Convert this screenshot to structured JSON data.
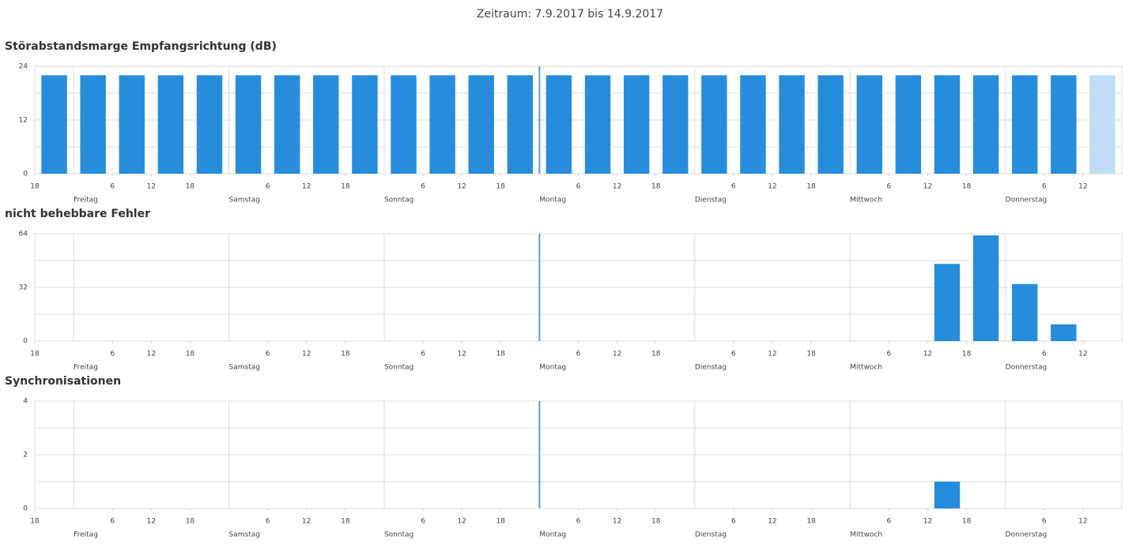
{
  "page_title": "Zeitraum: 7.9.2017 bis 14.9.2017",
  "chart_data": [
    {
      "type": "histogram",
      "title": "Störabstandsmarge Empfangsrichtung (dB)",
      "color": "#268ddd",
      "last_color": "#bfdef5",
      "bins": [
        0,
        6,
        12,
        18,
        24,
        30,
        36,
        42,
        48,
        54,
        60,
        66,
        72,
        78,
        84,
        90,
        96,
        102,
        108,
        114,
        120,
        126,
        132,
        138,
        144,
        150,
        156,
        162,
        168
      ],
      "values": [
        22,
        22,
        22,
        22,
        22,
        22,
        22,
        22,
        22,
        22,
        22,
        22,
        22,
        22,
        22,
        22,
        22,
        22,
        22,
        22,
        22,
        22,
        22,
        22,
        22,
        22,
        22,
        22
      ],
      "xlim": [
        0,
        168
      ],
      "xticks": [
        {
          "value": 0,
          "label": "18"
        },
        {
          "value": 12,
          "label": "6"
        },
        {
          "value": 18,
          "label": "12"
        },
        {
          "value": 24,
          "label": "18"
        },
        {
          "value": 36,
          "label": "6"
        },
        {
          "value": 42,
          "label": "12"
        },
        {
          "value": 48,
          "label": "18"
        },
        {
          "value": 60,
          "label": "6"
        },
        {
          "value": 66,
          "label": "12"
        },
        {
          "value": 72,
          "label": "18"
        },
        {
          "value": 84,
          "label": "6"
        },
        {
          "value": 90,
          "label": "12"
        },
        {
          "value": 96,
          "label": "18"
        },
        {
          "value": 108,
          "label": "6"
        },
        {
          "value": 114,
          "label": "12"
        },
        {
          "value": 120,
          "label": "18"
        },
        {
          "value": 132,
          "label": "6"
        },
        {
          "value": 138,
          "label": "12"
        },
        {
          "value": 144,
          "label": "18"
        },
        {
          "value": 156,
          "label": "6"
        },
        {
          "value": 162,
          "label": "12"
        }
      ],
      "day_ticks": [
        {
          "value": 6,
          "label": "Freitag"
        },
        {
          "value": 30,
          "label": "Samstag"
        },
        {
          "value": 54,
          "label": "Sonntag"
        },
        {
          "value": 78,
          "label": "Montag"
        },
        {
          "value": 102,
          "label": "Dienstag"
        },
        {
          "value": 126,
          "label": "Mittwoch"
        },
        {
          "value": 150,
          "label": "Donnerstag"
        }
      ],
      "ylim": [
        0,
        24
      ],
      "yticks": [
        0,
        12,
        24
      ],
      "ygrid": [
        0,
        6,
        12,
        18,
        24
      ],
      "marker_x": 78,
      "marker_color": "#5b9bd5"
    },
    {
      "type": "histogram",
      "title": "nicht behebbare Fehler",
      "color": "#268ddd",
      "bins": [
        0,
        6,
        12,
        18,
        24,
        30,
        36,
        42,
        48,
        54,
        60,
        66,
        72,
        78,
        84,
        90,
        96,
        102,
        108,
        114,
        120,
        126,
        132,
        138,
        144,
        150,
        156,
        162,
        168
      ],
      "values": [
        0,
        0,
        0,
        0,
        0,
        0,
        0,
        0,
        0,
        0,
        0,
        0,
        0,
        0,
        0,
        0,
        0,
        0,
        0,
        0,
        0,
        0,
        0,
        46,
        63,
        34,
        10,
        0
      ],
      "xlim": [
        0,
        168
      ],
      "xticks": [
        {
          "value": 0,
          "label": "18"
        },
        {
          "value": 12,
          "label": "6"
        },
        {
          "value": 18,
          "label": "12"
        },
        {
          "value": 24,
          "label": "18"
        },
        {
          "value": 36,
          "label": "6"
        },
        {
          "value": 42,
          "label": "12"
        },
        {
          "value": 48,
          "label": "18"
        },
        {
          "value": 60,
          "label": "6"
        },
        {
          "value": 66,
          "label": "12"
        },
        {
          "value": 72,
          "label": "18"
        },
        {
          "value": 84,
          "label": "6"
        },
        {
          "value": 90,
          "label": "12"
        },
        {
          "value": 96,
          "label": "18"
        },
        {
          "value": 108,
          "label": "6"
        },
        {
          "value": 114,
          "label": "12"
        },
        {
          "value": 120,
          "label": "18"
        },
        {
          "value": 132,
          "label": "6"
        },
        {
          "value": 138,
          "label": "12"
        },
        {
          "value": 144,
          "label": "18"
        },
        {
          "value": 156,
          "label": "6"
        },
        {
          "value": 162,
          "label": "12"
        }
      ],
      "day_ticks": [
        {
          "value": 6,
          "label": "Freitag"
        },
        {
          "value": 30,
          "label": "Samstag"
        },
        {
          "value": 54,
          "label": "Sonntag"
        },
        {
          "value": 78,
          "label": "Montag"
        },
        {
          "value": 102,
          "label": "Dienstag"
        },
        {
          "value": 126,
          "label": "Mittwoch"
        },
        {
          "value": 150,
          "label": "Donnerstag"
        }
      ],
      "ylim": [
        0,
        64
      ],
      "yticks": [
        0,
        32,
        64
      ],
      "ygrid": [
        0,
        16,
        32,
        48,
        64
      ],
      "marker_x": 78,
      "marker_color": "#5b9bd5"
    },
    {
      "type": "histogram",
      "title": "Synchronisationen",
      "color": "#268ddd",
      "bins": [
        0,
        6,
        12,
        18,
        24,
        30,
        36,
        42,
        48,
        54,
        60,
        66,
        72,
        78,
        84,
        90,
        96,
        102,
        108,
        114,
        120,
        126,
        132,
        138,
        144,
        150,
        156,
        162,
        168
      ],
      "values": [
        0,
        0,
        0,
        0,
        0,
        0,
        0,
        0,
        0,
        0,
        0,
        0,
        0,
        0,
        0,
        0,
        0,
        0,
        0,
        0,
        0,
        0,
        0,
        1,
        0,
        0,
        0,
        0
      ],
      "xlim": [
        0,
        168
      ],
      "xticks": [
        {
          "value": 0,
          "label": "18"
        },
        {
          "value": 12,
          "label": "6"
        },
        {
          "value": 18,
          "label": "12"
        },
        {
          "value": 24,
          "label": "18"
        },
        {
          "value": 36,
          "label": "6"
        },
        {
          "value": 42,
          "label": "12"
        },
        {
          "value": 48,
          "label": "18"
        },
        {
          "value": 60,
          "label": "6"
        },
        {
          "value": 66,
          "label": "12"
        },
        {
          "value": 72,
          "label": "18"
        },
        {
          "value": 84,
          "label": "6"
        },
        {
          "value": 90,
          "label": "12"
        },
        {
          "value": 96,
          "label": "18"
        },
        {
          "value": 108,
          "label": "6"
        },
        {
          "value": 114,
          "label": "12"
        },
        {
          "value": 120,
          "label": "18"
        },
        {
          "value": 132,
          "label": "6"
        },
        {
          "value": 138,
          "label": "12"
        },
        {
          "value": 144,
          "label": "18"
        },
        {
          "value": 156,
          "label": "6"
        },
        {
          "value": 162,
          "label": "12"
        }
      ],
      "day_ticks": [
        {
          "value": 6,
          "label": "Freitag"
        },
        {
          "value": 30,
          "label": "Samstag"
        },
        {
          "value": 54,
          "label": "Sonntag"
        },
        {
          "value": 78,
          "label": "Montag"
        },
        {
          "value": 102,
          "label": "Dienstag"
        },
        {
          "value": 126,
          "label": "Mittwoch"
        },
        {
          "value": 150,
          "label": "Donnerstag"
        }
      ],
      "ylim": [
        0,
        4
      ],
      "yticks": [
        0,
        2,
        4
      ],
      "ygrid": [
        0,
        1,
        2,
        3,
        4
      ],
      "marker_x": 78,
      "marker_color": "#5b9bd5"
    }
  ]
}
